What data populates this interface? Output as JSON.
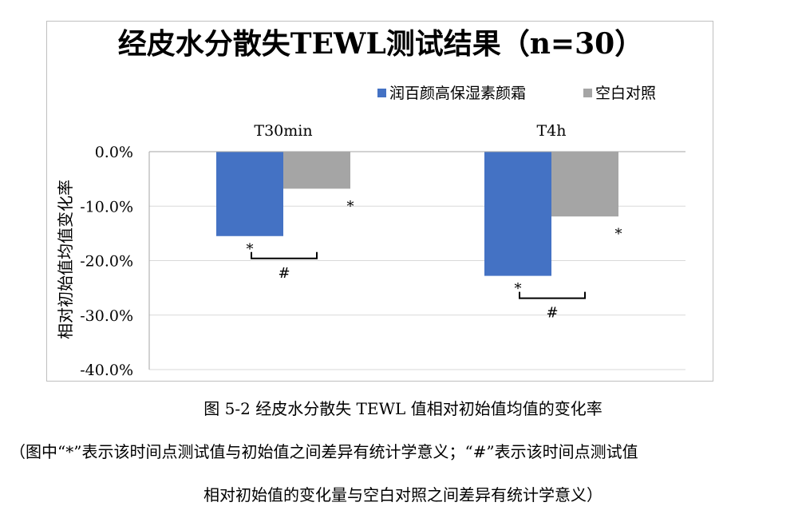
{
  "chart_data": {
    "type": "bar",
    "title": "经皮水分散失TEWL测试结果（n=30）",
    "categories": [
      "T30min",
      "T4h"
    ],
    "series": [
      {
        "name": "润百颜高保湿素颜霜",
        "values": [
          -15.5,
          -22.8
        ],
        "color": "#4472c4",
        "marks": [
          "*",
          "*"
        ]
      },
      {
        "name": "空白对照",
        "values": [
          -6.8,
          -11.9
        ],
        "color": "#a5a5a5",
        "marks": [
          "*",
          "*"
        ]
      }
    ],
    "comparison_marks": [
      "#",
      "#"
    ],
    "ylabel": "相对初始值均值变化率",
    "ylim": [
      -40,
      0
    ],
    "yticks": [
      0,
      -10,
      -20,
      -30,
      -40
    ],
    "ytick_labels": [
      "0.0%",
      "-10.0%",
      "-20.0%",
      "-30.0%",
      "-40.0%"
    ],
    "grid": true,
    "legend_position": "top-right",
    "category_axis_position": "top"
  },
  "caption": {
    "title": "图 5-2  经皮水分散失 TEWL 值相对初始值均值的变化率",
    "note_line1": "（图中“*”表示该时间点测试值与初始值之间差异有统计学意义；“#”表示该时间点测试值",
    "note_line2": "相对初始值的变化量与空白对照之间差异有统计学意义）"
  }
}
